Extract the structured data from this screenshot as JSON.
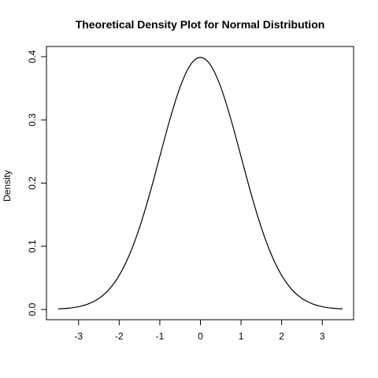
{
  "chart_data": {
    "type": "line",
    "title": "Theoretical Density Plot for Normal Distribution",
    "xlabel": "",
    "ylabel": "Density",
    "xlim": [
      -3.5,
      3.5
    ],
    "ylim": [
      0,
      0.4
    ],
    "grid": false,
    "legend": "none",
    "line_color": "#000000",
    "x_ticks": [
      -3,
      -2,
      -1,
      0,
      1,
      2,
      3
    ],
    "x_tick_labels": [
      "-3",
      "-2",
      "-1",
      "0",
      "1",
      "2",
      "3"
    ],
    "y_ticks": [
      0,
      0.1,
      0.2,
      0.3,
      0.4
    ],
    "y_tick_labels": [
      "0.0",
      "0.1",
      "0.2",
      "0.3",
      "0.4"
    ],
    "series": [
      {
        "x": [
          -3.5,
          -3.25,
          -3.0,
          -2.75,
          -2.5,
          -2.25,
          -2.0,
          -1.75,
          -1.5,
          -1.25,
          -1.0,
          -0.75,
          -0.5,
          -0.25,
          0.0,
          0.25,
          0.5,
          0.75,
          1.0,
          1.25,
          1.5,
          1.75,
          2.0,
          2.25,
          2.5,
          2.75,
          3.0,
          3.25,
          3.5
        ],
        "y": [
          0.0009,
          0.002,
          0.0044,
          0.0091,
          0.0175,
          0.0317,
          0.054,
          0.0863,
          0.1295,
          0.1826,
          0.242,
          0.3011,
          0.3521,
          0.3867,
          0.3989,
          0.3867,
          0.3521,
          0.3011,
          0.242,
          0.1826,
          0.1295,
          0.0863,
          0.054,
          0.0317,
          0.0175,
          0.0091,
          0.0044,
          0.002,
          0.0009
        ]
      }
    ]
  }
}
